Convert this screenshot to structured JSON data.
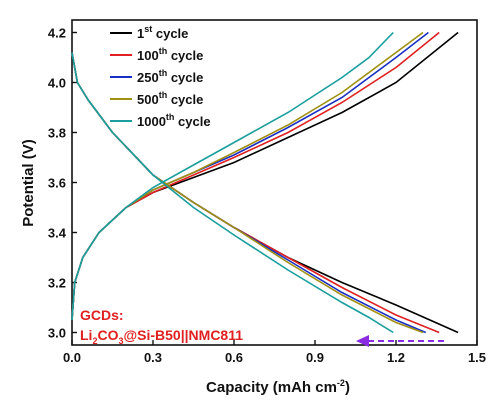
{
  "chart_data": {
    "type": "line",
    "xlabel": "Capacity (mAh cm",
    "xlabel_sup": "-2",
    "xlabel_end": ")",
    "ylabel": "Potential (V)",
    "xlim": [
      0.0,
      1.5
    ],
    "ylim": [
      2.95,
      4.25
    ],
    "x_ticks": [
      "0.0",
      "0.3",
      "0.6",
      "0.9",
      "1.2",
      "1.5"
    ],
    "x_tick_values": [
      0.0,
      0.3,
      0.6,
      0.9,
      1.2,
      1.5
    ],
    "y_ticks": [
      "3.0",
      "3.2",
      "3.4",
      "3.6",
      "3.8",
      "4.0",
      "4.2"
    ],
    "y_tick_values": [
      3.0,
      3.2,
      3.4,
      3.6,
      3.8,
      4.0,
      4.2
    ],
    "grid": false,
    "legend_position": "top-left",
    "annotation_line1": "GCDs:",
    "annotation_line2": "Li",
    "annotation_line2_sub": "2",
    "annotation_line2_rest1": "CO",
    "annotation_line2_sub2": "3",
    "annotation_line2_rest2": "@Si-B50||NMC811",
    "annotation_color": "#e02020",
    "arrow_color": "#8a2be2",
    "arrow_direction": "left",
    "series": [
      {
        "name": "1",
        "name_sup": "st",
        "name_tail": " cycle",
        "color": "#000000",
        "charge": {
          "x": [
            0.0,
            0.01,
            0.04,
            0.1,
            0.2,
            0.3,
            0.45,
            0.6,
            0.8,
            1.0,
            1.2,
            1.43
          ],
          "y": [
            3.05,
            3.2,
            3.3,
            3.4,
            3.5,
            3.56,
            3.62,
            3.68,
            3.78,
            3.88,
            4.0,
            4.2
          ]
        },
        "discharge": {
          "x": [
            0.0,
            0.02,
            0.06,
            0.15,
            0.3,
            0.45,
            0.6,
            0.8,
            1.0,
            1.2,
            1.43
          ],
          "y": [
            4.12,
            4.0,
            3.93,
            3.8,
            3.63,
            3.52,
            3.42,
            3.3,
            3.2,
            3.11,
            3.0
          ]
        }
      },
      {
        "name": "100",
        "name_sup": "th",
        "name_tail": " cycle",
        "color": "#e02020",
        "charge": {
          "x": [
            0.0,
            0.01,
            0.04,
            0.1,
            0.2,
            0.3,
            0.45,
            0.6,
            0.8,
            1.0,
            1.2,
            1.36
          ],
          "y": [
            3.05,
            3.2,
            3.3,
            3.4,
            3.5,
            3.56,
            3.63,
            3.7,
            3.8,
            3.92,
            4.06,
            4.2
          ]
        },
        "discharge": {
          "x": [
            0.0,
            0.02,
            0.06,
            0.15,
            0.3,
            0.45,
            0.6,
            0.8,
            1.0,
            1.2,
            1.36
          ],
          "y": [
            4.12,
            4.0,
            3.93,
            3.8,
            3.63,
            3.52,
            3.42,
            3.3,
            3.18,
            3.07,
            3.0
          ]
        }
      },
      {
        "name": "250",
        "name_sup": "th",
        "name_tail": " cycle",
        "color": "#1a2fc4",
        "charge": {
          "x": [
            0.0,
            0.01,
            0.04,
            0.1,
            0.2,
            0.3,
            0.45,
            0.6,
            0.8,
            1.0,
            1.2,
            1.32
          ],
          "y": [
            3.05,
            3.2,
            3.3,
            3.4,
            3.5,
            3.57,
            3.64,
            3.71,
            3.82,
            3.94,
            4.1,
            4.2
          ]
        },
        "discharge": {
          "x": [
            0.0,
            0.02,
            0.06,
            0.15,
            0.3,
            0.45,
            0.6,
            0.8,
            1.0,
            1.2,
            1.31
          ],
          "y": [
            4.12,
            4.0,
            3.93,
            3.8,
            3.63,
            3.52,
            3.42,
            3.29,
            3.16,
            3.05,
            3.0
          ]
        }
      },
      {
        "name": "500",
        "name_sup": "th",
        "name_tail": " cycle",
        "color": "#a09010",
        "charge": {
          "x": [
            0.0,
            0.01,
            0.04,
            0.1,
            0.2,
            0.3,
            0.45,
            0.6,
            0.8,
            1.0,
            1.2,
            1.3
          ],
          "y": [
            3.05,
            3.2,
            3.3,
            3.4,
            3.5,
            3.57,
            3.64,
            3.72,
            3.83,
            3.96,
            4.12,
            4.2
          ]
        },
        "discharge": {
          "x": [
            0.0,
            0.02,
            0.06,
            0.15,
            0.3,
            0.45,
            0.6,
            0.8,
            1.0,
            1.2,
            1.3
          ],
          "y": [
            4.12,
            4.0,
            3.93,
            3.8,
            3.63,
            3.52,
            3.42,
            3.28,
            3.15,
            3.04,
            3.0
          ]
        }
      },
      {
        "name": "1000",
        "name_sup": "th",
        "name_tail": " cycle",
        "color": "#1a9e9e",
        "charge": {
          "x": [
            0.0,
            0.01,
            0.04,
            0.1,
            0.2,
            0.3,
            0.45,
            0.6,
            0.8,
            1.0,
            1.1,
            1.19
          ],
          "y": [
            3.05,
            3.2,
            3.3,
            3.4,
            3.5,
            3.58,
            3.67,
            3.76,
            3.88,
            4.02,
            4.1,
            4.2
          ]
        },
        "discharge": {
          "x": [
            0.0,
            0.02,
            0.06,
            0.15,
            0.3,
            0.45,
            0.6,
            0.8,
            1.0,
            1.1,
            1.19
          ],
          "y": [
            4.12,
            4.0,
            3.93,
            3.8,
            3.63,
            3.5,
            3.39,
            3.25,
            3.12,
            3.06,
            3.0
          ]
        }
      }
    ]
  }
}
